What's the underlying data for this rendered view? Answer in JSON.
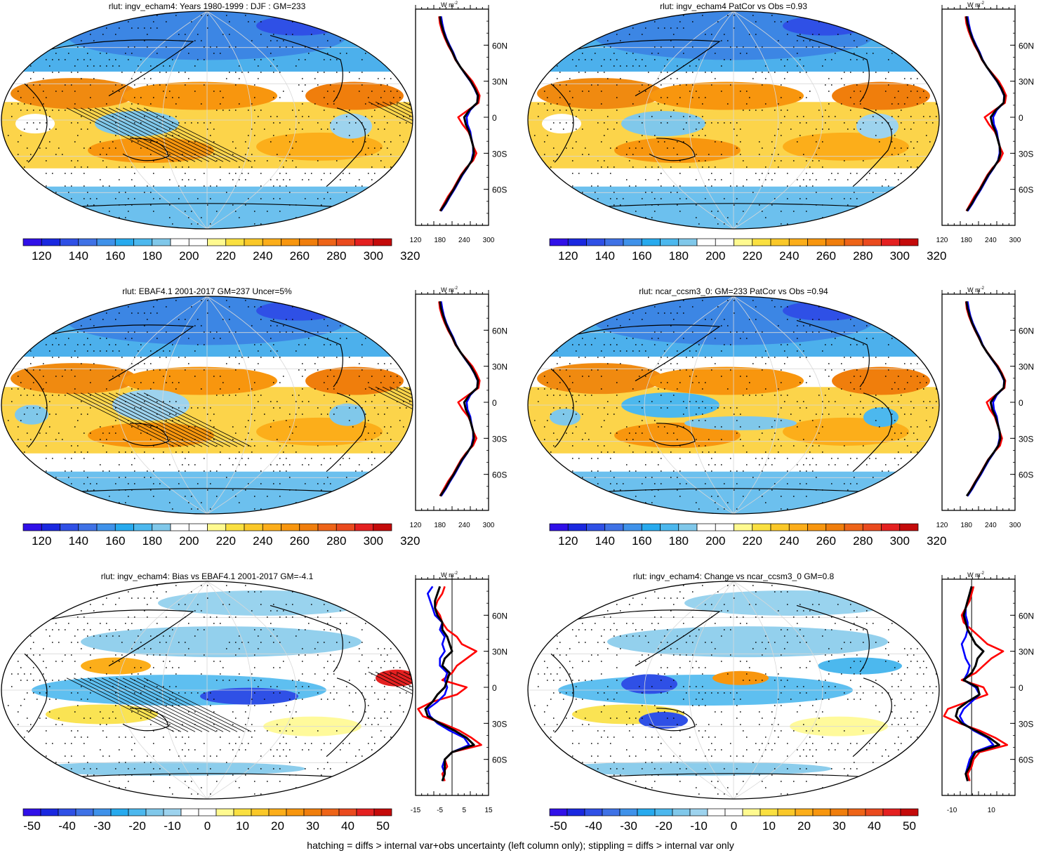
{
  "figure": {
    "footer": "hatching = diffs > internal var+obs uncertainty (left column only); stippling = diffs > internal var only",
    "zonal_axis_unit": "W m",
    "zonal_axis_unit_sup": "-2",
    "lat_ticks": [
      "60N",
      "30N",
      "0",
      "30S",
      "60S"
    ],
    "colors": {
      "model": "#ff0000",
      "obs": "#0000ff",
      "mean": "#000000"
    }
  },
  "panels": [
    {
      "title": "rlut: ingv_echam4: Years 1980-1999 : DJF : GM=233",
      "kind": "abs",
      "pattern": "a",
      "hatch": true
    },
    {
      "title": "rlut: ingv_echam4 PatCor vs Obs =0.93",
      "kind": "abs",
      "pattern": "a",
      "hatch": false
    },
    {
      "title": "rlut: EBAF4.1 2001-2017 GM=237 Uncer=5%",
      "kind": "abs",
      "pattern": "b",
      "hatch": true
    },
    {
      "title": "rlut: ncar_ccsm3_0: GM=233 PatCor vs Obs =0.94",
      "kind": "abs",
      "pattern": "c",
      "hatch": false
    },
    {
      "title": "rlut: ingv_echam4: Bias vs EBAF4.1 2001-2017 GM=-4.1",
      "kind": "diff",
      "pattern": "d",
      "hatch": true
    },
    {
      "title": "rlut: ingv_echam4: Change vs ncar_ccsm3_0 GM=0.8",
      "kind": "diff",
      "pattern": "e",
      "hatch": false
    }
  ],
  "chart_data": [
    {
      "type": "area",
      "title": "rlut: ingv_echam4: Years 1980-1999 : DJF : GM=233",
      "colorbar": {
        "labels": [
          "120",
          "140",
          "160",
          "180",
          "200",
          "220",
          "240",
          "260",
          "280",
          "300",
          "320"
        ]
      },
      "zonal": {
        "xticks": [
          "120",
          "180",
          "240",
          "300"
        ],
        "xlim": [
          120,
          300
        ],
        "ylim": [
          -90,
          90
        ],
        "zero_line": false,
        "lat": [
          -78,
          -72,
          -66,
          -60,
          -54,
          -48,
          -42,
          -36,
          -30,
          -24,
          -18,
          -12,
          -6,
          0,
          6,
          12,
          18,
          24,
          30,
          36,
          42,
          48,
          54,
          60,
          66,
          72,
          78,
          84
        ],
        "series": [
          {
            "role": "model",
            "values": [
              180,
              190,
              200,
              212,
              222,
              232,
              245,
              262,
              270,
              262,
              258,
              250,
              236,
              225,
              250,
              275,
              278,
              270,
              260,
              245,
              230,
              218,
              210,
              200,
              192,
              185,
              180,
              178
            ]
          },
          {
            "role": "obs",
            "values": [
              183,
              195,
              205,
              216,
              226,
              236,
              248,
              258,
              262,
              262,
              258,
              255,
              248,
              246,
              255,
              272,
              273,
              265,
              255,
              242,
              230,
              220,
              213,
              204,
              196,
              190,
              186,
              183
            ]
          },
          {
            "role": "mean",
            "values": [
              181,
              193,
              203,
              214,
              224,
              234,
              247,
              259,
              264,
              262,
              257,
              252,
              244,
              240,
              253,
              272,
              274,
              266,
              256,
              243,
              230,
              219,
              211,
              202,
              194,
              188,
              183,
              180
            ]
          }
        ]
      }
    },
    {
      "type": "area",
      "title": "rlut: ingv_echam4 PatCor vs Obs =0.93",
      "colorbar": {
        "labels": [
          "120",
          "140",
          "160",
          "180",
          "200",
          "220",
          "240",
          "260",
          "280",
          "300",
          "320"
        ]
      },
      "zonal": {
        "xticks": [
          "120",
          "180",
          "240",
          "300"
        ],
        "xlim": [
          120,
          300
        ],
        "ylim": [
          -90,
          90
        ],
        "zero_line": false,
        "lat": [
          -78,
          -72,
          -66,
          -60,
          -54,
          -48,
          -42,
          -36,
          -30,
          -24,
          -18,
          -12,
          -6,
          0,
          6,
          12,
          18,
          24,
          30,
          36,
          42,
          48,
          54,
          60,
          66,
          72,
          78,
          84
        ],
        "series": [
          {
            "role": "model",
            "values": [
              180,
              190,
              200,
              212,
              222,
              232,
              245,
              262,
              270,
              262,
              258,
              250,
              236,
              225,
              250,
              275,
              278,
              270,
              260,
              245,
              230,
              218,
              210,
              200,
              192,
              185,
              180,
              178
            ]
          },
          {
            "role": "obs",
            "values": [
              183,
              195,
              205,
              216,
              226,
              236,
              248,
              258,
              262,
              262,
              258,
              255,
              248,
              246,
              255,
              272,
              273,
              265,
              255,
              242,
              230,
              220,
              213,
              204,
              196,
              190,
              186,
              183
            ]
          },
          {
            "role": "mean",
            "values": [
              181,
              193,
              203,
              214,
              224,
              234,
              247,
              259,
              264,
              262,
              257,
              252,
              244,
              240,
              253,
              272,
              274,
              266,
              256,
              243,
              230,
              219,
              211,
              202,
              194,
              188,
              183,
              180
            ]
          }
        ]
      }
    },
    {
      "type": "area",
      "title": "rlut: EBAF4.1 2001-2017 GM=237 Uncer=5%",
      "colorbar": {
        "labels": [
          "120",
          "140",
          "160",
          "180",
          "200",
          "220",
          "240",
          "260",
          "280",
          "300",
          "320"
        ]
      },
      "zonal": {
        "xticks": [
          "120",
          "180",
          "240",
          "300"
        ],
        "xlim": [
          120,
          300
        ],
        "ylim": [
          -90,
          90
        ],
        "zero_line": false,
        "lat": [
          -78,
          -72,
          -66,
          -60,
          -54,
          -48,
          -42,
          -36,
          -30,
          -24,
          -18,
          -12,
          -6,
          0,
          6,
          12,
          18,
          24,
          30,
          36,
          42,
          48,
          54,
          60,
          66,
          72,
          78,
          84
        ],
        "series": [
          {
            "role": "model",
            "values": [
              180,
              190,
              200,
              212,
              222,
              232,
              245,
              262,
              270,
              262,
              258,
              250,
              236,
              225,
              250,
              275,
              278,
              270,
              260,
              245,
              230,
              218,
              210,
              200,
              192,
              185,
              180,
              178
            ]
          },
          {
            "role": "obs",
            "values": [
              183,
              195,
              205,
              216,
              226,
              236,
              248,
              258,
              262,
              262,
              258,
              255,
              248,
              246,
              255,
              272,
              273,
              265,
              255,
              242,
              230,
              220,
              213,
              204,
              196,
              190,
              186,
              183
            ]
          },
          {
            "role": "mean",
            "values": [
              181,
              193,
              203,
              214,
              224,
              234,
              247,
              259,
              264,
              262,
              257,
              252,
              244,
              240,
              253,
              272,
              274,
              266,
              256,
              243,
              230,
              219,
              211,
              202,
              194,
              188,
              183,
              180
            ]
          }
        ]
      }
    },
    {
      "type": "area",
      "title": "rlut: ncar_ccsm3_0: GM=233 PatCor vs Obs =0.94",
      "colorbar": {
        "labels": [
          "120",
          "140",
          "160",
          "180",
          "200",
          "220",
          "240",
          "260",
          "280",
          "300",
          "320"
        ]
      },
      "zonal": {
        "xticks": [
          "120",
          "180",
          "240",
          "300"
        ],
        "xlim": [
          120,
          300
        ],
        "ylim": [
          -90,
          90
        ],
        "zero_line": false,
        "lat": [
          -78,
          -72,
          -66,
          -60,
          -54,
          -48,
          -42,
          -36,
          -30,
          -24,
          -18,
          -12,
          -6,
          0,
          6,
          12,
          18,
          24,
          30,
          36,
          42,
          48,
          54,
          60,
          66,
          72,
          78,
          84
        ],
        "series": [
          {
            "role": "model",
            "values": [
              182,
              192,
              202,
              213,
              223,
              233,
              247,
              263,
              268,
              262,
              256,
              250,
              238,
              230,
              252,
              274,
              276,
              268,
              258,
              244,
              231,
              219,
              210,
              201,
              193,
              186,
              181,
              179
            ]
          },
          {
            "role": "obs",
            "values": [
              183,
              195,
              205,
              216,
              226,
              236,
              248,
              258,
              262,
              262,
              258,
              255,
              248,
              246,
              255,
              272,
              273,
              265,
              255,
              242,
              230,
              220,
              213,
              204,
              196,
              190,
              186,
              183
            ]
          },
          {
            "role": "mean",
            "values": [
              181,
              193,
              203,
              214,
              224,
              234,
              247,
              259,
              264,
              262,
              257,
              252,
              244,
              240,
              253,
              272,
              274,
              266,
              256,
              243,
              230,
              219,
              211,
              202,
              194,
              188,
              183,
              180
            ]
          }
        ]
      }
    },
    {
      "type": "area",
      "title": "rlut: ingv_echam4: Bias vs EBAF4.1 2001-2017 GM=-4.1",
      "colorbar": {
        "labels": [
          "-50",
          "-40",
          "-30",
          "-20",
          "-10",
          "0",
          "10",
          "20",
          "30",
          "40",
          "50"
        ]
      },
      "zonal": {
        "xticks": [
          "-15",
          "-5",
          "5",
          "15"
        ],
        "xlim": [
          -15,
          15
        ],
        "ylim": [
          -90,
          90
        ],
        "zero_line": true,
        "lat": [
          -78,
          -72,
          -66,
          -60,
          -54,
          -48,
          -42,
          -36,
          -30,
          -24,
          -18,
          -12,
          -6,
          0,
          6,
          12,
          18,
          24,
          30,
          36,
          42,
          48,
          54,
          60,
          66,
          72,
          78,
          84
        ],
        "series": [
          {
            "role": "model",
            "values": [
              -3,
              -4,
              -2,
              -3,
              0,
              12,
              8,
              3,
              -4,
              -12,
              -14,
              -8,
              2,
              6,
              -4,
              0,
              2,
              6,
              10,
              4,
              2,
              -2,
              -4,
              -5,
              -7,
              -6,
              -4,
              -3
            ]
          },
          {
            "role": "obs",
            "values": [
              -4,
              -3,
              -4,
              -3,
              0,
              7,
              5,
              -1,
              -6,
              -9,
              -10,
              -6,
              -3,
              -2,
              -3,
              -2,
              -5,
              -5,
              -3,
              -4,
              -3,
              -5,
              -4,
              -7,
              -8,
              -9,
              -10,
              -8
            ]
          },
          {
            "role": "mean",
            "values": [
              -4,
              -3,
              -3,
              -3,
              0,
              9,
              6,
              1,
              -5,
              -10,
              -11,
              -8,
              -6,
              -3,
              -2,
              -1,
              -4,
              -3,
              0,
              -1,
              -2,
              -4,
              -4,
              -6,
              -7,
              -7,
              -6,
              -5
            ]
          }
        ]
      }
    },
    {
      "type": "area",
      "title": "rlut: ingv_echam4: Change vs ncar_ccsm3_0 GM=0.8",
      "colorbar": {
        "labels": [
          "-50",
          "-40",
          "-30",
          "-20",
          "-10",
          "0",
          "10",
          "20",
          "30",
          "40",
          "50"
        ]
      },
      "zonal": {
        "xticks": [
          "-10",
          "10"
        ],
        "xlim": [
          -15,
          22
        ],
        "ylim": [
          -90,
          90
        ],
        "zero_line": true,
        "lat": [
          -78,
          -72,
          -66,
          -60,
          -54,
          -48,
          -42,
          -36,
          -30,
          -24,
          -18,
          -12,
          -6,
          0,
          6,
          12,
          18,
          24,
          30,
          36,
          42,
          48,
          54,
          60,
          66,
          72,
          78,
          84
        ],
        "series": [
          {
            "role": "model",
            "values": [
              -1,
              -2,
              0,
              1,
              4,
              18,
              12,
              4,
              -6,
              -14,
              -12,
              -2,
              8,
              6,
              -5,
              2,
              6,
              10,
              16,
              8,
              4,
              0,
              -4,
              -5,
              -3,
              -1,
              0,
              1
            ]
          },
          {
            "role": "obs",
            "values": [
              -2,
              -3,
              -2,
              -1,
              1,
              11,
              8,
              1,
              -4,
              -6,
              -4,
              0,
              4,
              2,
              -4,
              -2,
              -1,
              -3,
              -4,
              -5,
              -3,
              -2,
              -2,
              -3,
              -3,
              -2,
              -1,
              0
            ]
          },
          {
            "role": "mean",
            "values": [
              -2,
              -3,
              -1,
              0,
              2,
              14,
              9,
              2,
              -5,
              -8,
              -7,
              -2,
              4,
              3,
              -4,
              0,
              2,
              3,
              6,
              2,
              0,
              -2,
              -3,
              -4,
              -3,
              -2,
              -1,
              0
            ]
          }
        ]
      }
    }
  ]
}
